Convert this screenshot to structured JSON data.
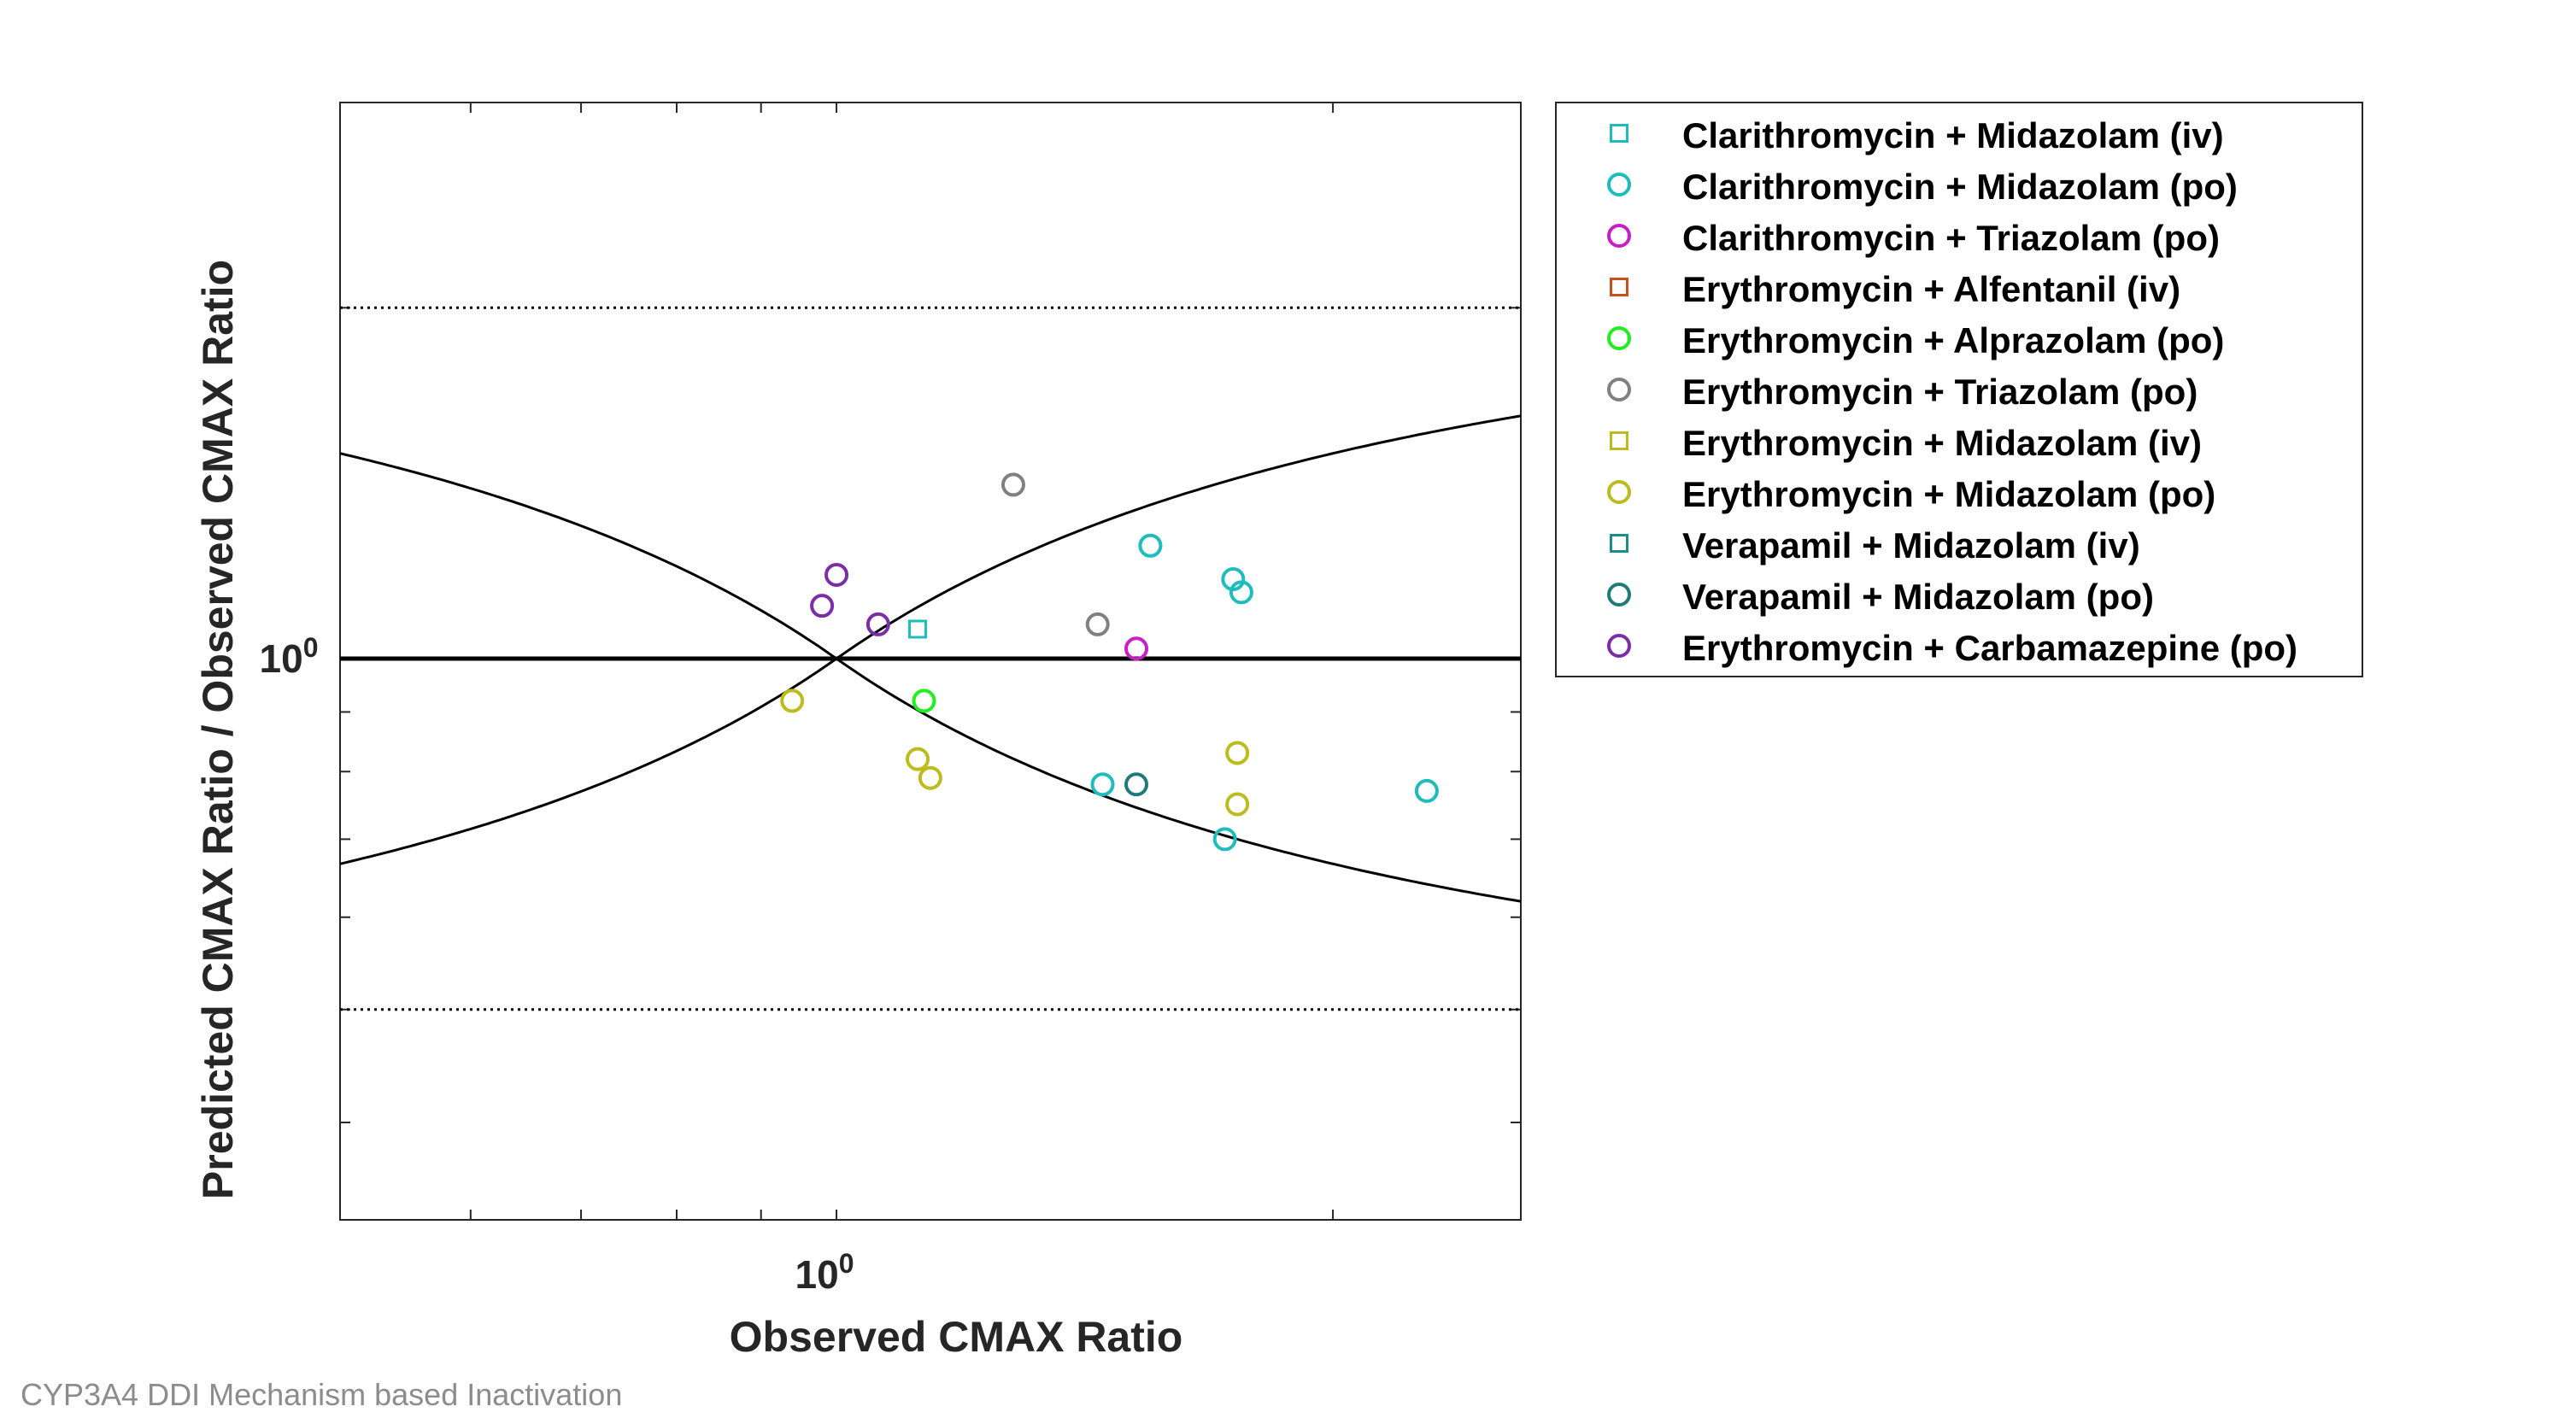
{
  "caption": "CYP3A4 DDI Mechanism based Inactivation",
  "chart_data": {
    "type": "scatter",
    "xlabel": "Observed CMAX Ratio",
    "ylabel": "Predicted CMAX Ratio / Observed CMAX Ratio",
    "x_scale": "log",
    "y_scale": "log",
    "xlim": [
      0.5,
      2.6
    ],
    "ylim": [
      0.33,
      3.0
    ],
    "x_tick_labels": [
      {
        "value": 1,
        "base": "10",
        "exp": "0"
      }
    ],
    "y_tick_labels": [
      {
        "value": 1,
        "base": "10",
        "exp": "0"
      }
    ],
    "grid": false,
    "legend_position": "outside-right",
    "reference_lines": [
      {
        "kind": "identity",
        "value": 1,
        "style": "solid-thick"
      },
      {
        "kind": "upper_limit",
        "value": 2,
        "style": "dotted"
      },
      {
        "kind": "lower_limit",
        "value": 0.5,
        "style": "dotted"
      },
      {
        "kind": "guest_limit_upper",
        "style": "solid"
      },
      {
        "kind": "guest_limit_lower",
        "style": "solid"
      }
    ],
    "series": [
      {
        "name": "Clarithromycin + Midazolam (iv)",
        "marker": "square",
        "color": "#1fbcbc",
        "points": [
          [
            1.12,
            1.06
          ]
        ]
      },
      {
        "name": "Clarithromycin + Midazolam (po)",
        "marker": "circle",
        "color": "#1fbcbc",
        "points": [
          [
            1.45,
            0.78
          ],
          [
            1.55,
            1.25
          ],
          [
            1.72,
            0.7
          ],
          [
            1.74,
            1.17
          ],
          [
            1.76,
            1.14
          ],
          [
            2.28,
            0.77
          ]
        ]
      },
      {
        "name": "Clarithromycin + Triazolam (po)",
        "marker": "circle",
        "color": "#c91fc9",
        "points": [
          [
            1.52,
            1.02
          ]
        ]
      },
      {
        "name": "Erythromycin + Alfentanil (iv)",
        "marker": "square",
        "color": "#c8501f",
        "points": []
      },
      {
        "name": "Erythromycin + Alprazolam (po)",
        "marker": "circle",
        "color": "#1fee1f",
        "points": [
          [
            1.13,
            0.92
          ]
        ]
      },
      {
        "name": "Erythromycin + Triazolam (po)",
        "marker": "circle",
        "color": "#808080",
        "points": [
          [
            1.28,
            1.41
          ],
          [
            1.44,
            1.07
          ]
        ]
      },
      {
        "name": "Erythromycin + Midazolam (iv)",
        "marker": "square",
        "color": "#bcbc1f",
        "points": []
      },
      {
        "name": "Erythromycin + Midazolam (po)",
        "marker": "circle",
        "color": "#bcbc1f",
        "points": [
          [
            0.94,
            0.92
          ],
          [
            1.12,
            0.82
          ],
          [
            1.14,
            0.79
          ],
          [
            1.75,
            0.83
          ],
          [
            1.75,
            0.75
          ]
        ]
      },
      {
        "name": "Verapamil + Midazolam (iv)",
        "marker": "square",
        "color": "#1f8c8c",
        "points": []
      },
      {
        "name": "Verapamil + Midazolam (po)",
        "marker": "circle",
        "color": "#1f7a7a",
        "points": [
          [
            1.52,
            0.78
          ]
        ]
      },
      {
        "name": "Erythromycin + Carbamazepine (po)",
        "marker": "circle",
        "color": "#7a2ea8",
        "points": [
          [
            0.98,
            1.11
          ],
          [
            1.0,
            1.18
          ],
          [
            1.06,
            1.07
          ]
        ]
      }
    ]
  }
}
